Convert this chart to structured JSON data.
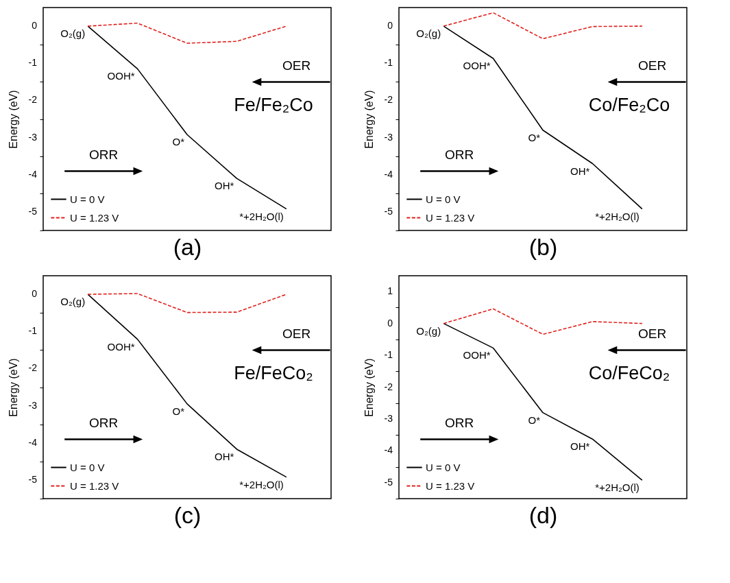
{
  "chart_data": [
    {
      "type": "line",
      "xlabel": "(a)",
      "ylabel": "Energy (eV)",
      "categories": [
        null,
        null,
        null,
        null,
        null
      ],
      "ylim": [
        -5.5,
        0.5
      ],
      "yticks": [
        {
          "value": -5.5,
          "label": null
        },
        -5,
        {
          "value": -4.5,
          "label": null
        },
        -4,
        {
          "value": -3.5,
          "label": null
        },
        -3,
        {
          "value": -2.5,
          "label": null
        },
        -2,
        {
          "value": -1.5,
          "label": null
        },
        -1,
        {
          "value": -0.5,
          "label": null
        },
        0
      ],
      "series": [
        {
          "name": "U = 0 V",
          "color": "#000000",
          "line_style": "solid",
          "values": [
            0,
            -1.15,
            -2.92,
            -4.1,
            -4.92
          ]
        },
        {
          "name": "U = 1.23 V",
          "color": "#e0201c",
          "line_style": "dashed",
          "values": [
            0,
            0.08,
            -0.46,
            -0.41,
            0
          ]
        }
      ],
      "annotations": [
        "O₂(g)",
        "OOH*",
        "O*",
        "OH*",
        "*+2H₂O(l)",
        "Fe/Fe₂Co",
        "ORR",
        "OER"
      ],
      "legend": "bottom left",
      "tick_labels": "y"
    },
    {
      "type": "line",
      "xlabel": "(b)",
      "ylabel": "Energy (eV)",
      "categories": [
        null,
        null,
        null,
        null,
        null
      ],
      "ylim": [
        -5.5,
        0.5
      ],
      "yticks": [
        {
          "value": -5.5,
          "label": null
        },
        -5,
        {
          "value": -4.5,
          "label": null
        },
        -4,
        {
          "value": -3.5,
          "label": null
        },
        -3,
        {
          "value": -2.5,
          "label": null
        },
        -2,
        {
          "value": -1.5,
          "label": null
        },
        -1,
        {
          "value": -0.5,
          "label": null
        },
        0
      ],
      "series": [
        {
          "name": "U = 0 V",
          "color": "#000000",
          "line_style": "solid",
          "values": [
            0,
            -0.87,
            -2.8,
            -3.7,
            -4.92
          ]
        },
        {
          "name": "U = 1.23 V",
          "color": "#e0201c",
          "line_style": "dashed",
          "values": [
            0,
            0.36,
            -0.34,
            -0.01,
            0
          ]
        }
      ],
      "annotations": [
        "O₂(g)",
        "OOH*",
        "O*",
        "OH*",
        "*+2H₂O(l)",
        "Co/Fe₂Co",
        "ORR",
        "OER"
      ],
      "legend": "bottom left",
      "tick_labels": "y"
    },
    {
      "type": "line",
      "xlabel": "(c)",
      "ylabel": "Energy (eV)",
      "categories": [
        null,
        null,
        null,
        null,
        null
      ],
      "ylim": [
        -5.5,
        0.5
      ],
      "yticks": [
        {
          "value": -5.5,
          "label": null
        },
        -5,
        {
          "value": -4.5,
          "label": null
        },
        -4,
        {
          "value": -3.5,
          "label": null
        },
        -3,
        {
          "value": -2.5,
          "label": null
        },
        -2,
        {
          "value": -1.5,
          "label": null
        },
        -1,
        {
          "value": -0.5,
          "label": null
        },
        0
      ],
      "series": [
        {
          "name": "U = 0 V",
          "color": "#000000",
          "line_style": "solid",
          "values": [
            0,
            -1.21,
            -2.95,
            -4.17,
            -4.92
          ]
        },
        {
          "name": "U = 1.23 V",
          "color": "#e0201c",
          "line_style": "dashed",
          "values": [
            0,
            0.02,
            -0.49,
            -0.48,
            0
          ]
        }
      ],
      "annotations": [
        "O₂(g)",
        "OOH*",
        "O*",
        "OH*",
        "*+2H₂O(l)",
        "Fe/FeCo₂",
        "ORR",
        "OER"
      ],
      "legend": "bottom left",
      "tick_labels": "y"
    },
    {
      "type": "line",
      "xlabel": "(d)",
      "ylabel": "Energy (eV)",
      "categories": [
        null,
        null,
        null,
        null,
        null
      ],
      "ylim": [
        -5.5,
        1.5
      ],
      "yticks": [
        {
          "value": -5.5,
          "label": null
        },
        -5,
        {
          "value": -4.5,
          "label": null
        },
        -4,
        {
          "value": -3.5,
          "label": null
        },
        -3,
        {
          "value": -2.5,
          "label": null
        },
        -2,
        {
          "value": -1.5,
          "label": null
        },
        -1,
        {
          "value": -0.5,
          "label": null
        },
        0,
        {
          "value": 0.5,
          "label": null
        },
        1
      ],
      "series": [
        {
          "name": "U = 0 V",
          "color": "#000000",
          "line_style": "solid",
          "values": [
            0,
            -0.77,
            -2.8,
            -3.63,
            -4.92
          ]
        },
        {
          "name": "U = 1.23 V",
          "color": "#e0201c",
          "line_style": "dashed",
          "values": [
            0,
            0.46,
            -0.34,
            0.06,
            0
          ]
        }
      ],
      "annotations": [
        "O₂(g)",
        "OOH*",
        "O*",
        "OH*",
        "*+2H₂O(l)",
        "Co/FeCo₂",
        "ORR",
        "OER"
      ],
      "legend": "bottom left",
      "tick_labels": "y"
    }
  ]
}
